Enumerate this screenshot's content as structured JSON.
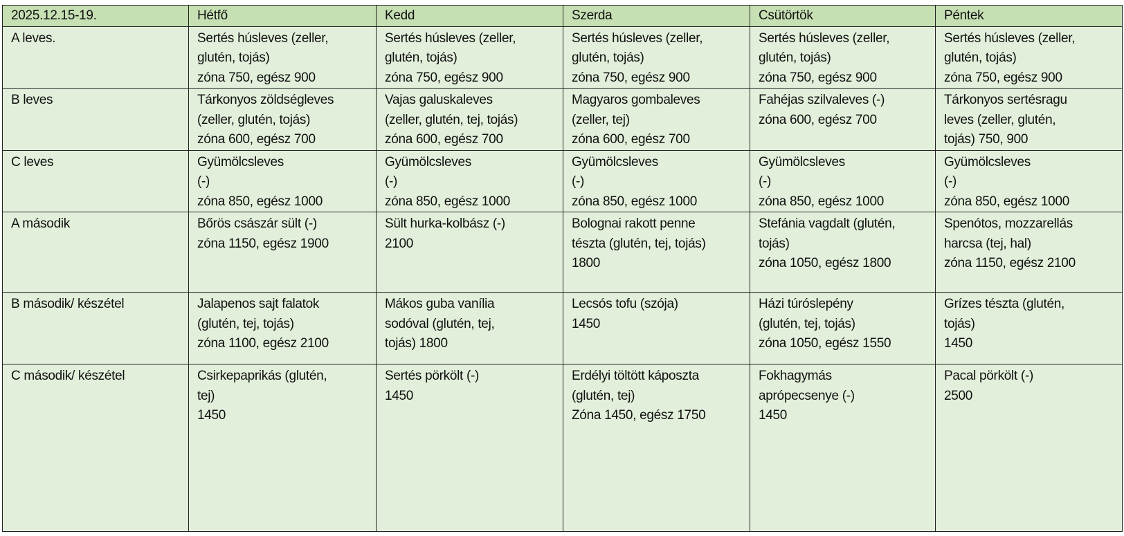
{
  "header": [
    "2025.12.15-19.",
    "Hétfő",
    "Kedd",
    "Szerda",
    "Csütörtök",
    "Péntek"
  ],
  "colors": {
    "header_bg": "#c6e0b4",
    "body_bg": "#e2efda"
  },
  "rows": [
    {
      "label": "A leves.",
      "cells": [
        [
          "Sertés húsleves (zeller,",
          "glutén, tojás)",
          "zóna 750, egész 900"
        ],
        [
          "Sertés húsleves (zeller,",
          "glutén, tojás)",
          "zóna 750, egész 900"
        ],
        [
          "Sertés húsleves (zeller,",
          "glutén, tojás)",
          "zóna 750, egész 900"
        ],
        [
          "Sertés húsleves (zeller,",
          "glutén, tojás)",
          "zóna 750, egész 900"
        ],
        [
          "Sertés húsleves (zeller,",
          "glutén, tojás)",
          "zóna 750, egész 900"
        ]
      ]
    },
    {
      "label": "B leves",
      "cells": [
        [
          "Tárkonyos zöldségleves",
          "(zeller, glutén, tojás)",
          "zóna 600, egész 700"
        ],
        [
          "Vajas galuskaleves",
          "(zeller, glutén, tej, tojás)",
          "zóna 600, egész 700"
        ],
        [
          "Magyaros gombaleves",
          "(zeller, tej)",
          "zóna 600, egész 700"
        ],
        [
          "Fahéjas szilvaleves (-)",
          "zóna 600, egész 700"
        ],
        [
          "Tárkonyos sertésragu",
          "leves (zeller, glutén,",
          "tojás) 750, 900"
        ]
      ]
    },
    {
      "label": "C leves",
      "cells": [
        [
          "Gyümölcsleves",
          "(-)",
          "zóna 850, egész 1000"
        ],
        [
          "Gyümölcsleves",
          "(-)",
          "zóna 850, egész 1000"
        ],
        [
          "Gyümölcsleves",
          "(-)",
          "zóna 850, egész 1000"
        ],
        [
          "Gyümölcsleves",
          "(-)",
          "zóna 850, egész 1000"
        ],
        [
          "Gyümölcsleves",
          "(-)",
          "zóna 850, egész 1000"
        ]
      ]
    },
    {
      "label": "A második",
      "cells": [
        [
          "Bőrös császár sült (-)",
          "zóna 1150, egész 1900"
        ],
        [
          "Sült hurka-kolbász (-)",
          "2100"
        ],
        [
          "Bolognai rakott penne",
          "tészta (glutén, tej, tojás)",
          "1800"
        ],
        [
          "Stefánia vagdalt (glutén,",
          "tojás)",
          "zóna 1050, egész 1800"
        ],
        [
          "Spenótos, mozzarellás",
          "harcsa (tej, hal)",
          "zóna 1150, egész 2100"
        ]
      ]
    },
    {
      "label": "B második/ készétel",
      "cells": [
        [
          "Jalapenos sajt falatok",
          "(glutén, tej, tojás)",
          "zóna 1100, egész 2100"
        ],
        [
          "Mákos guba vanília",
          "sodóval (glutén, tej,",
          "tojás) 1800"
        ],
        [
          "Lecsós tofu (szója)",
          "1450"
        ],
        [
          "Házi túróslepény",
          "(glutén, tej, tojás)",
          "zóna 1050, egész 1550"
        ],
        [
          "Grízes tészta (glutén,",
          "tojás)",
          "1450"
        ]
      ]
    },
    {
      "label": "C második/ készétel",
      "cells": [
        [
          "Csirkepaprikás (glutén,",
          "tej)",
          "1450"
        ],
        [
          "Sertés pörkölt (-)",
          "1450"
        ],
        [
          "Erdélyi töltött káposzta",
          "(glutén, tej)",
          "Zóna 1450, egész 1750"
        ],
        [
          "Fokhagymás",
          "aprópecsenye (-)",
          "1450"
        ],
        [
          "Pacal pörkölt (-)",
          "2500"
        ]
      ]
    }
  ]
}
